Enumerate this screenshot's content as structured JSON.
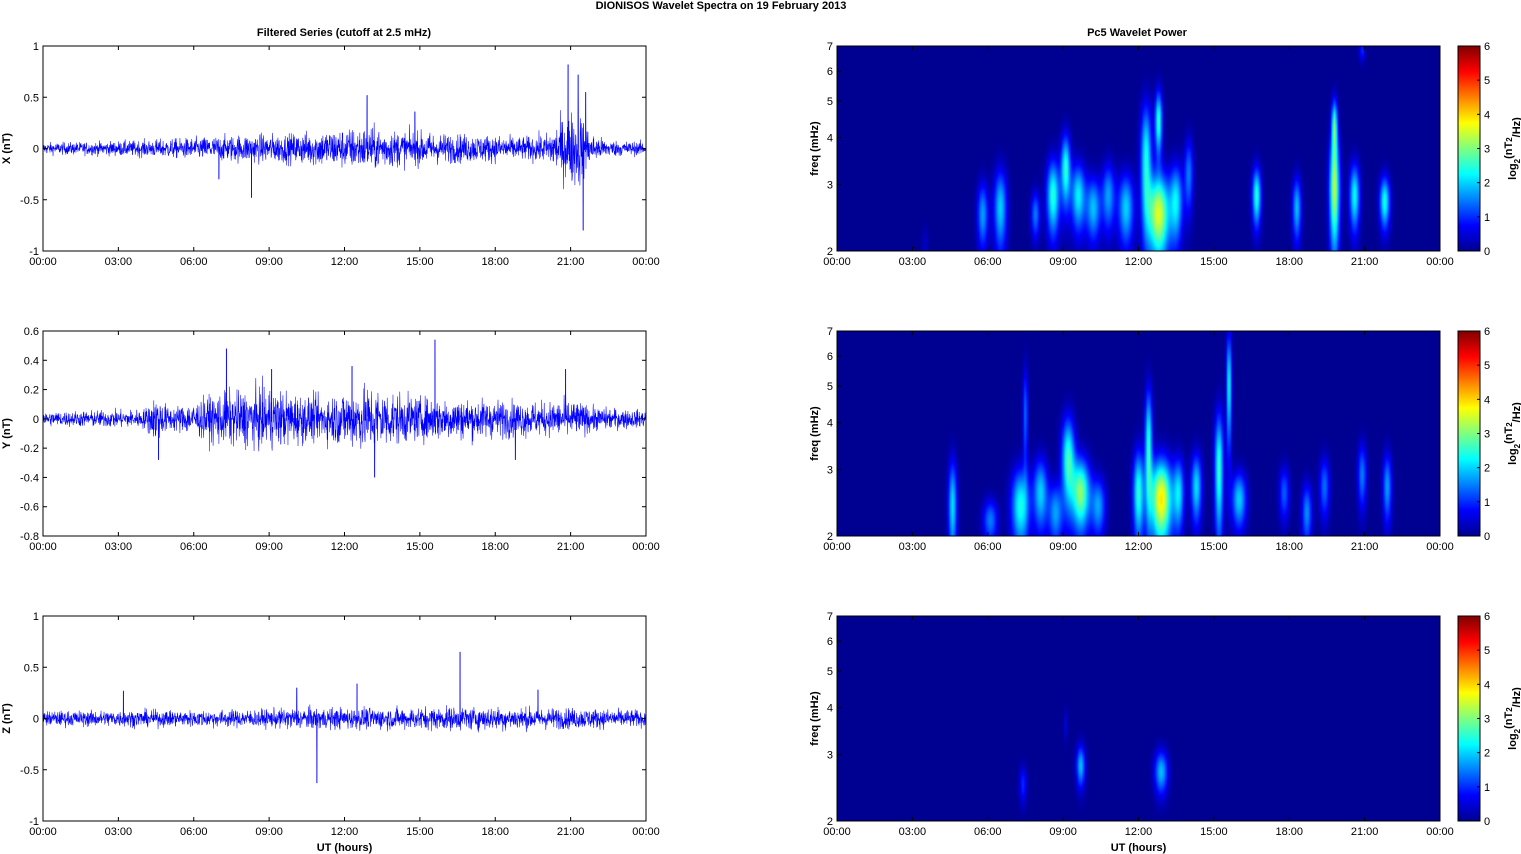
{
  "figure": {
    "title": "DIONISOS Wavelet Spectra on 19 February  2013",
    "left_column_title": "Filtered Series (cutoff at 2.5 mHz)",
    "right_column_title": "Pc5 Wavelet Power"
  },
  "chart_data": [
    {
      "type": "line",
      "panel": "X-series",
      "ylabel": "X (nT)",
      "xlabel": "",
      "x_ticks": [
        "00:00",
        "03:00",
        "06:00",
        "09:00",
        "12:00",
        "15:00",
        "18:00",
        "21:00",
        "00:00"
      ],
      "xlim_hours": [
        0,
        24
      ],
      "ylim": [
        -1,
        1
      ],
      "y_ticks": [
        1,
        0.5,
        0,
        -0.5,
        -1
      ],
      "y_tick_labels": [
        "1",
        "0.5",
        "0",
        "-0.5",
        "-1"
      ],
      "color": "#0000ff",
      "envelope": [
        [
          0,
          0.07
        ],
        [
          2,
          0.08
        ],
        [
          4,
          0.1
        ],
        [
          6,
          0.13
        ],
        [
          8,
          0.17
        ],
        [
          10,
          0.18
        ],
        [
          11,
          0.22
        ],
        [
          12,
          0.24
        ],
        [
          13,
          0.26
        ],
        [
          14,
          0.22
        ],
        [
          15,
          0.2
        ],
        [
          16,
          0.18
        ],
        [
          18,
          0.16
        ],
        [
          19,
          0.14
        ],
        [
          20,
          0.17
        ],
        [
          20.8,
          0.4
        ],
        [
          21.3,
          0.5
        ],
        [
          21.8,
          0.18
        ],
        [
          22.5,
          0.1
        ],
        [
          24,
          0.08
        ]
      ],
      "spikes": [
        [
          8.3,
          -0.48
        ],
        [
          12.9,
          0.52
        ],
        [
          20.9,
          0.82
        ],
        [
          21.3,
          0.72
        ],
        [
          21.5,
          -0.8
        ],
        [
          21.6,
          0.55
        ],
        [
          7.0,
          -0.3
        ],
        [
          14.8,
          0.36
        ]
      ]
    },
    {
      "type": "heatmap",
      "panel": "X-wavelet",
      "ylabel": "freq (mHz)",
      "xlabel": "",
      "x_ticks": [
        "00:00",
        "03:00",
        "06:00",
        "09:00",
        "12:00",
        "15:00",
        "18:00",
        "21:00",
        "00:00"
      ],
      "xlim_hours": [
        0,
        24
      ],
      "ylim_mhz": [
        2,
        7
      ],
      "y_ticks": [
        2,
        3,
        4,
        5,
        6,
        7
      ],
      "y_tick_labels": [
        "2",
        "3",
        "4",
        "5",
        "6",
        "7"
      ],
      "y_scale": "log",
      "colorbar": {
        "label": "log2(nT2/Hz)",
        "range": [
          0,
          6
        ],
        "ticks": [
          "0",
          "1",
          "2",
          "3",
          "4",
          "5",
          "6"
        ]
      },
      "blobs": [
        [
          3.5,
          2.1,
          0.1,
          0.15,
          0.3
        ],
        [
          5.8,
          2.5,
          0.15,
          0.35,
          1.6
        ],
        [
          6.5,
          2.6,
          0.18,
          0.45,
          1.9
        ],
        [
          7.9,
          2.5,
          0.12,
          0.25,
          1.4
        ],
        [
          8.6,
          2.8,
          0.18,
          0.45,
          2.4
        ],
        [
          9.1,
          3.3,
          0.13,
          0.5,
          2.4
        ],
        [
          9.6,
          2.8,
          0.2,
          0.4,
          2.1
        ],
        [
          10.2,
          2.6,
          0.2,
          0.35,
          1.8
        ],
        [
          10.8,
          2.8,
          0.18,
          0.4,
          1.6
        ],
        [
          11.5,
          2.6,
          0.22,
          0.4,
          1.9
        ],
        [
          12.3,
          3.5,
          0.15,
          0.9,
          2.3
        ],
        [
          12.8,
          2.5,
          0.3,
          0.45,
          3.5
        ],
        [
          12.8,
          4.4,
          0.1,
          0.6,
          2.5
        ],
        [
          13.5,
          2.7,
          0.18,
          0.45,
          2.0
        ],
        [
          14.0,
          3.2,
          0.12,
          0.5,
          1.4
        ],
        [
          16.7,
          2.8,
          0.12,
          0.35,
          2.4
        ],
        [
          18.3,
          2.6,
          0.12,
          0.35,
          1.8
        ],
        [
          19.8,
          2.9,
          0.14,
          0.7,
          3.2
        ],
        [
          19.8,
          4.3,
          0.08,
          0.5,
          2.5
        ],
        [
          20.6,
          2.8,
          0.14,
          0.4,
          2.2
        ],
        [
          21.8,
          2.7,
          0.14,
          0.3,
          2.3
        ],
        [
          20.9,
          6.8,
          0.08,
          0.3,
          0.9
        ]
      ]
    },
    {
      "type": "line",
      "panel": "Y-series",
      "ylabel": "Y (nT)",
      "xlabel": "",
      "x_ticks": [
        "00:00",
        "03:00",
        "06:00",
        "09:00",
        "12:00",
        "15:00",
        "18:00",
        "21:00",
        "00:00"
      ],
      "xlim_hours": [
        0,
        24
      ],
      "ylim": [
        -0.8,
        0.6
      ],
      "y_ticks": [
        0.6,
        0.4,
        0.2,
        0,
        -0.2,
        -0.4,
        -0.6,
        -0.8
      ],
      "y_tick_labels": [
        "0.6",
        "0.4",
        "0.2",
        "0",
        "-0.2",
        "-0.4",
        "-0.6",
        "-0.8"
      ],
      "color": "#0000ff",
      "envelope": [
        [
          0,
          0.06
        ],
        [
          2,
          0.07
        ],
        [
          4,
          0.08
        ],
        [
          4.5,
          0.2
        ],
        [
          5,
          0.1
        ],
        [
          6,
          0.14
        ],
        [
          7,
          0.22
        ],
        [
          8,
          0.24
        ],
        [
          9,
          0.26
        ],
        [
          10,
          0.22
        ],
        [
          11,
          0.18
        ],
        [
          12,
          0.24
        ],
        [
          13,
          0.28
        ],
        [
          14,
          0.22
        ],
        [
          15,
          0.18
        ],
        [
          16,
          0.18
        ],
        [
          18,
          0.16
        ],
        [
          20,
          0.14
        ],
        [
          21,
          0.16
        ],
        [
          22,
          0.1
        ],
        [
          24,
          0.07
        ]
      ],
      "spikes": [
        [
          15.6,
          0.54
        ],
        [
          7.3,
          0.48
        ],
        [
          13.2,
          -0.4
        ],
        [
          4.6,
          -0.28
        ],
        [
          9.1,
          0.34
        ],
        [
          12.3,
          0.36
        ],
        [
          20.8,
          0.34
        ],
        [
          18.8,
          -0.28
        ]
      ]
    },
    {
      "type": "heatmap",
      "panel": "Y-wavelet",
      "ylabel": "freq (mHz)",
      "xlabel": "",
      "x_ticks": [
        "00:00",
        "03:00",
        "06:00",
        "09:00",
        "12:00",
        "15:00",
        "18:00",
        "21:00",
        "00:00"
      ],
      "xlim_hours": [
        0,
        24
      ],
      "ylim_mhz": [
        2,
        7
      ],
      "y_ticks": [
        2,
        3,
        4,
        5,
        6,
        7
      ],
      "y_tick_labels": [
        "2",
        "3",
        "4",
        "5",
        "6",
        "7"
      ],
      "y_scale": "log",
      "colorbar": {
        "label": "log2(nT2/Hz)",
        "range": [
          0,
          6
        ],
        "ticks": [
          "0",
          "1",
          "2",
          "3",
          "4",
          "5",
          "6"
        ]
      },
      "blobs": [
        [
          4.6,
          2.4,
          0.12,
          0.5,
          2.0
        ],
        [
          6.1,
          2.2,
          0.2,
          0.2,
          1.4
        ],
        [
          7.3,
          2.4,
          0.25,
          0.4,
          2.3
        ],
        [
          7.5,
          4.2,
          0.07,
          0.9,
          1.3
        ],
        [
          8.1,
          2.6,
          0.2,
          0.4,
          1.9
        ],
        [
          8.7,
          2.3,
          0.2,
          0.3,
          1.6
        ],
        [
          9.2,
          3.2,
          0.18,
          0.6,
          2.5
        ],
        [
          9.7,
          2.6,
          0.25,
          0.4,
          3.0
        ],
        [
          10.4,
          2.4,
          0.2,
          0.3,
          1.6
        ],
        [
          12.0,
          2.6,
          0.15,
          0.5,
          2.4
        ],
        [
          12.4,
          3.5,
          0.1,
          0.9,
          2.4
        ],
        [
          12.9,
          2.5,
          0.3,
          0.45,
          3.8
        ],
        [
          13.6,
          2.6,
          0.15,
          0.4,
          1.9
        ],
        [
          14.3,
          2.7,
          0.15,
          0.4,
          2.0
        ],
        [
          15.2,
          3.0,
          0.12,
          0.8,
          2.5
        ],
        [
          15.6,
          5.0,
          0.07,
          1.2,
          2.3
        ],
        [
          16.0,
          2.5,
          0.2,
          0.3,
          1.9
        ],
        [
          17.8,
          2.6,
          0.14,
          0.3,
          1.2
        ],
        [
          18.7,
          2.3,
          0.14,
          0.3,
          1.5
        ],
        [
          19.4,
          2.7,
          0.14,
          0.35,
          1.3
        ],
        [
          20.9,
          2.9,
          0.12,
          0.4,
          1.4
        ],
        [
          21.9,
          2.7,
          0.12,
          0.4,
          1.6
        ]
      ]
    },
    {
      "type": "line",
      "panel": "Z-series",
      "ylabel": "Z (nT)",
      "xlabel": "UT (hours)",
      "x_ticks": [
        "00:00",
        "03:00",
        "06:00",
        "09:00",
        "12:00",
        "15:00",
        "18:00",
        "21:00",
        "00:00"
      ],
      "xlim_hours": [
        0,
        24
      ],
      "ylim": [
        -1,
        1
      ],
      "y_ticks": [
        1,
        0.5,
        0,
        -0.5,
        -1
      ],
      "y_tick_labels": [
        "1",
        "0.5",
        "0",
        "-0.5",
        "-1"
      ],
      "color": "#0000ff",
      "envelope": [
        [
          0,
          0.09
        ],
        [
          3,
          0.1
        ],
        [
          6,
          0.1
        ],
        [
          9,
          0.11
        ],
        [
          10,
          0.13
        ],
        [
          12,
          0.13
        ],
        [
          14,
          0.13
        ],
        [
          16,
          0.14
        ],
        [
          18,
          0.14
        ],
        [
          20,
          0.13
        ],
        [
          22,
          0.12
        ],
        [
          24,
          0.1
        ]
      ],
      "spikes": [
        [
          10.9,
          -0.63
        ],
        [
          16.6,
          0.65
        ],
        [
          12.5,
          0.34
        ],
        [
          10.1,
          0.3
        ],
        [
          3.2,
          0.27
        ],
        [
          19.7,
          0.28
        ]
      ]
    },
    {
      "type": "heatmap",
      "panel": "Z-wavelet",
      "ylabel": "freq (mHz)",
      "xlabel": "UT (hours)",
      "x_ticks": [
        "00:00",
        "03:00",
        "06:00",
        "09:00",
        "12:00",
        "15:00",
        "18:00",
        "21:00",
        "00:00"
      ],
      "xlim_hours": [
        0,
        24
      ],
      "ylim_mhz": [
        2,
        7
      ],
      "y_ticks": [
        2,
        3,
        4,
        5,
        6,
        7
      ],
      "y_tick_labels": [
        "2",
        "3",
        "4",
        "5",
        "6",
        "7"
      ],
      "y_scale": "log",
      "colorbar": {
        "label": "log2(nT2/Hz)",
        "range": [
          0,
          6
        ],
        "ticks": [
          "0",
          "1",
          "2",
          "3",
          "4",
          "5",
          "6"
        ]
      },
      "blobs": [
        [
          7.4,
          2.5,
          0.1,
          0.2,
          0.9
        ],
        [
          9.7,
          2.8,
          0.12,
          0.25,
          1.8
        ],
        [
          9.1,
          3.6,
          0.05,
          0.25,
          0.5
        ],
        [
          12.9,
          2.7,
          0.18,
          0.25,
          1.8
        ]
      ]
    }
  ]
}
